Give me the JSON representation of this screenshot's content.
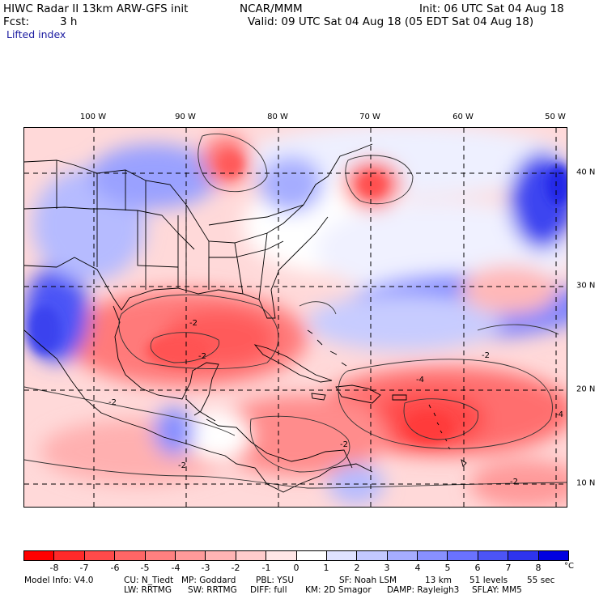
{
  "header": {
    "title_left": "HIWC Radar II 13km ARW-GFS init",
    "org": "NCAR/MMM",
    "init": "Init: 06 UTC Sat 04 Aug 18",
    "fcst_label": "Fcst:",
    "fcst_value": "3 h",
    "valid": "Valid: 09 UTC Sat 04 Aug 18 (05 EDT Sat 04 Aug 18)",
    "field": "Lifted index"
  },
  "map": {
    "lon_labels": [
      "100 W",
      "90 W",
      "80 W",
      "70 W",
      "60 W",
      "50 W"
    ],
    "lat_labels": [
      "40 N",
      "30 N",
      "20 N",
      "10 N"
    ],
    "contour_labels": [
      "-2",
      "-2",
      "-2",
      "-2",
      "-4",
      "-4",
      "-2",
      "-2",
      "-2"
    ]
  },
  "colorbar": {
    "labels": [
      "-8",
      "-7",
      "-6",
      "-5",
      "-4",
      "-3",
      "-2",
      "-1",
      "0",
      "1",
      "2",
      "3",
      "4",
      "5",
      "6",
      "7",
      "8"
    ],
    "unit": "°C",
    "colors": [
      "#ff0000",
      "#ff2a2a",
      "#ff4a4a",
      "#ff6666",
      "#ff8080",
      "#ff9a9a",
      "#ffb4b4",
      "#ffcccc",
      "#ffe6e6",
      "#ffffff",
      "#dfe2ff",
      "#c3c8ff",
      "#a6adff",
      "#8890ff",
      "#6a72ff",
      "#4c54f6",
      "#2e34ee",
      "#0000e0"
    ]
  },
  "footer": {
    "line1_a": "Model Info: V4.0",
    "line1_b": "CU: N_Tiedt",
    "line1_c": "MP: Goddard",
    "line1_d": "PBL: YSU",
    "line1_e": "SF: Noah LSM",
    "line1_f": "13 km",
    "line1_g": "51 levels",
    "line1_h": "55 sec",
    "line2_a": "LW: RRTMG",
    "line2_b": "SW: RRTMG",
    "line2_c": "DIFF: full",
    "line2_d": "KM: 2D Smagor",
    "line2_e": "DAMP: Rayleigh3",
    "line2_f": "SFLAY: MM5"
  }
}
